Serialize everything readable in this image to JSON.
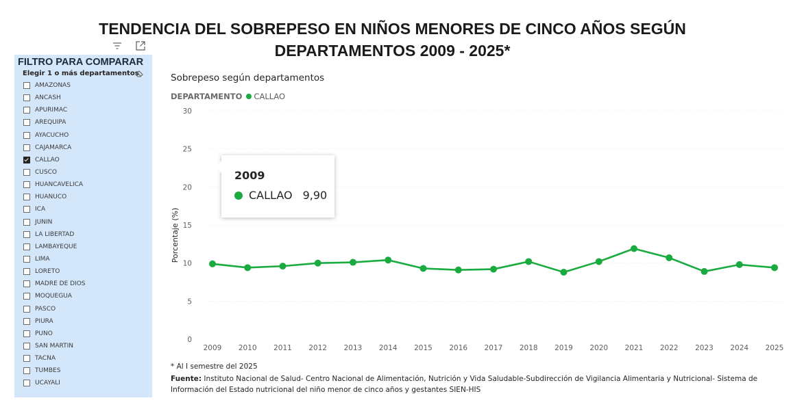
{
  "page": {
    "title_line1": "TENDENCIA DEL SOBREPESO EN NIÑOS MENORES DE CINCO AÑOS SEGÚN",
    "title_line2": "DEPARTAMENTOS 2009 - 2025*"
  },
  "filter": {
    "title": "FILTRO PARA COMPARAR",
    "subtitle": "Elegir 1 o más departamentos",
    "items": [
      {
        "label": "AMAZONAS",
        "checked": false
      },
      {
        "label": "ANCASH",
        "checked": false
      },
      {
        "label": "APURIMAC",
        "checked": false
      },
      {
        "label": "AREQUIPA",
        "checked": false
      },
      {
        "label": "AYACUCHO",
        "checked": false
      },
      {
        "label": "CAJAMARCA",
        "checked": false
      },
      {
        "label": "CALLAO",
        "checked": true
      },
      {
        "label": "CUSCO",
        "checked": false
      },
      {
        "label": "HUANCAVELICA",
        "checked": false
      },
      {
        "label": "HUANUCO",
        "checked": false
      },
      {
        "label": "ICA",
        "checked": false
      },
      {
        "label": "JUNIN",
        "checked": false
      },
      {
        "label": "LA LIBERTAD",
        "checked": false
      },
      {
        "label": "LAMBAYEQUE",
        "checked": false
      },
      {
        "label": "LIMA",
        "checked": false
      },
      {
        "label": "LORETO",
        "checked": false
      },
      {
        "label": "MADRE DE DIOS",
        "checked": false
      },
      {
        "label": "MOQUEGUA",
        "checked": false
      },
      {
        "label": "PASCO",
        "checked": false
      },
      {
        "label": "PIURA",
        "checked": false
      },
      {
        "label": "PUNO",
        "checked": false
      },
      {
        "label": "SAN MARTIN",
        "checked": false
      },
      {
        "label": "TACNA",
        "checked": false
      },
      {
        "label": "TUMBES",
        "checked": false
      },
      {
        "label": "UCAYALI",
        "checked": false
      }
    ]
  },
  "icons": {
    "visual_filter": "filter-lines-icon",
    "focus_mode": "focus-mode-icon",
    "clear_selection": "eraser-icon",
    "checkbox_checked": "checkmark-icon"
  },
  "legend": {
    "title": "DEPARTAMENTO",
    "series": "CALLAO"
  },
  "tooltip": {
    "year": "2009",
    "series": "CALLAO",
    "value": "9,90"
  },
  "chart_data": {
    "type": "line",
    "title": "Sobrepeso según departamentos",
    "xlabel": "",
    "ylabel": "Porcentaje (%)",
    "ylim": [
      0,
      30
    ],
    "yticks": [
      0,
      5,
      10,
      15,
      20,
      25,
      30
    ],
    "grid": true,
    "legend_position": "top-left",
    "x": [
      "2009",
      "2010",
      "2011",
      "2012",
      "2013",
      "2014",
      "2015",
      "2016",
      "2017",
      "2018",
      "2019",
      "2020",
      "2021",
      "2022",
      "2023",
      "2024",
      "2025"
    ],
    "series": [
      {
        "name": "CALLAO",
        "color": "#1aab40",
        "values": [
          9.9,
          9.4,
          9.6,
          10.0,
          10.1,
          10.4,
          9.3,
          9.1,
          9.2,
          10.2,
          8.8,
          10.2,
          11.9,
          10.7,
          8.9,
          9.8,
          9.4
        ]
      }
    ]
  },
  "notes": {
    "footnote": "* Al I semestre del 2025",
    "source_label": "Fuente:",
    "source_text": " Instituto Nacional de Salud- Centro Nacional de Alimentación, Nutrición y Vida Saludable-Subdirección de Vigilancia Alimentaria y Nutricional- Sistema de Información del Estado nutricional del niño menor de cinco años y gestantes SIEN-HIS"
  },
  "colors": {
    "panel_bg": "#d4e6fa",
    "series": "#1aab40",
    "grid": "#ececec"
  }
}
